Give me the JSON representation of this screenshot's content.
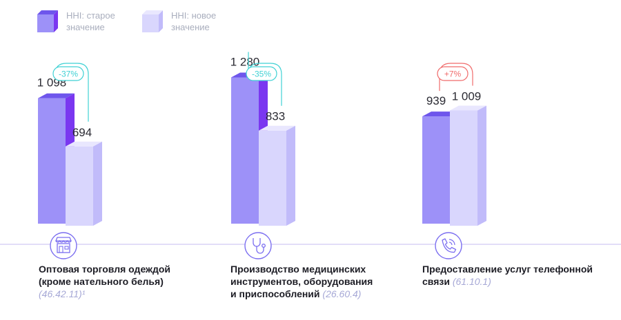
{
  "legend": {
    "old_label": "HHI: старое значение",
    "new_label": "HHI: новое значение"
  },
  "colors": {
    "old_front": "#9d91f8",
    "old_side": "#7a37f0",
    "old_top": "#6e56ec",
    "new_front": "#d9d6fd",
    "new_side": "#c1bbfa",
    "new_top": "#e9e7fe",
    "baseline": "#d8d2f6",
    "negative_change": "#3fd1d4",
    "positive_change": "#f06b6b",
    "icon_stroke": "#7b6ef0"
  },
  "chart_data": {
    "type": "bar",
    "categories": [
      "Оптовая торговля одеждой (кроме нательного белья) (46.42.11)¹",
      "Производство медицинских инструментов, оборудования и приспособлений (26.60.4)",
      "Предоставление услуг телефонной связи (61.10.1)"
    ],
    "series": [
      {
        "name": "HHI: старое значение",
        "values": [
          1098,
          1280,
          939
        ]
      },
      {
        "name": "HHI: новое значение",
        "values": [
          694,
          833,
          1009
        ]
      }
    ],
    "value_labels": {
      "old": [
        "1 098",
        "1 280",
        "939"
      ],
      "new": [
        "694",
        "833",
        "1 009"
      ]
    },
    "changes": [
      "-37%",
      "-35%",
      "+7%"
    ],
    "ylim": [
      0,
      1280
    ]
  },
  "categories": [
    {
      "title_lines": [
        "Оптовая торговля одеждой",
        "(кроме нательного белья)"
      ],
      "code": "(46.42.11)",
      "note": "¹",
      "icon": "store-icon"
    },
    {
      "title_lines": [
        "Производство медицинских",
        "инструментов, оборудования",
        "и приспособлений"
      ],
      "code": "(26.60.4)",
      "note": "",
      "icon": "stethoscope-icon"
    },
    {
      "title_lines": [
        "Предоставление услуг телефонной",
        "связи"
      ],
      "code": "(61.10.1)",
      "note": "",
      "icon": "phone-icon"
    }
  ]
}
